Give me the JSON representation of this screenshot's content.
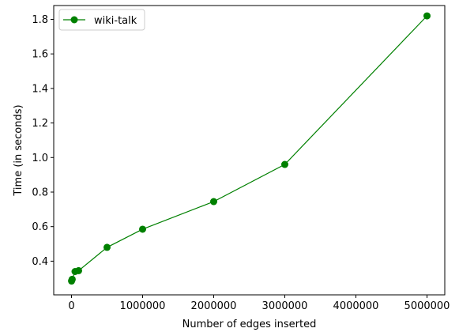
{
  "chart_data": {
    "type": "line",
    "title": "",
    "xlabel": "Number of edges inserted",
    "ylabel": "Time (in seconds)",
    "xlim": [
      -250000,
      5250000
    ],
    "ylim": [
      0.205,
      1.88
    ],
    "x_ticks": [
      0,
      1000000,
      2000000,
      3000000,
      4000000,
      5000000
    ],
    "x_tick_labels": [
      "0",
      "1000000",
      "2000000",
      "3000000",
      "4000000",
      "5000000"
    ],
    "y_ticks": [
      0.4,
      0.6,
      0.8,
      1.0,
      1.2,
      1.4,
      1.6,
      1.8
    ],
    "y_tick_labels": [
      "0.4",
      "0.6",
      "0.8",
      "1.0",
      "1.2",
      "1.4",
      "1.6",
      "1.8"
    ],
    "grid": false,
    "legend_position": "top-left",
    "series": [
      {
        "name": "wiki-talk",
        "color": "#008000",
        "marker": "circle",
        "x": [
          1000,
          5000,
          10000,
          50000,
          100000,
          500000,
          1000000,
          2000000,
          3000000,
          5000000
        ],
        "y": [
          0.285,
          0.29,
          0.295,
          0.34,
          0.345,
          0.48,
          0.585,
          0.745,
          0.96,
          1.82
        ]
      }
    ]
  }
}
